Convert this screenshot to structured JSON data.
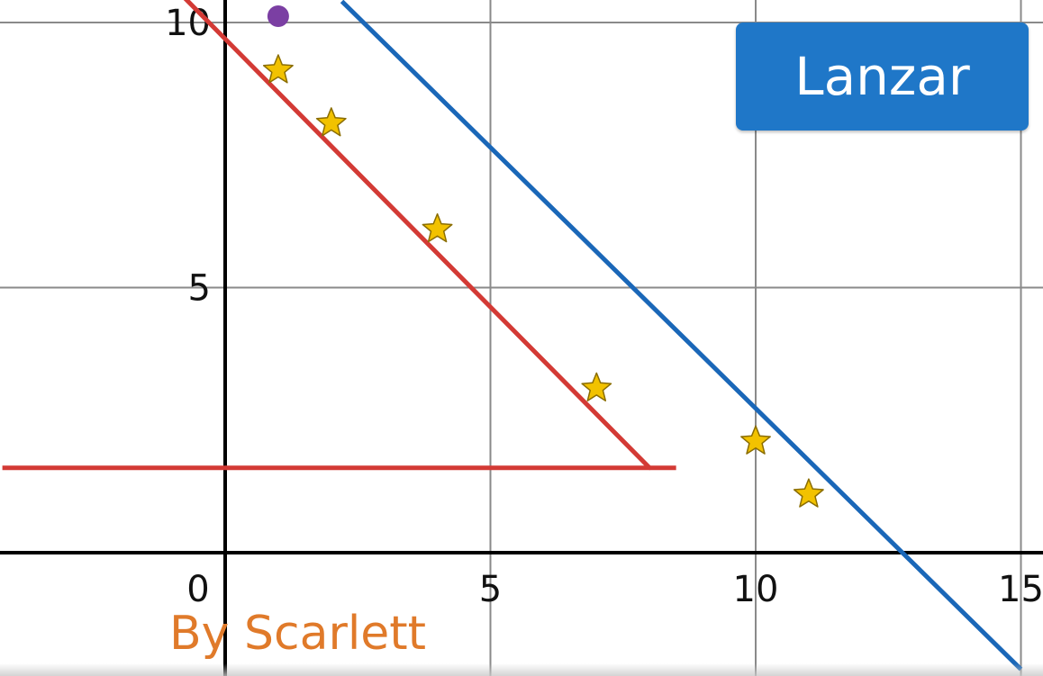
{
  "button": {
    "label": "Lanzar"
  },
  "watermark": {
    "text": "By Scarlett"
  },
  "colors": {
    "grid": "#8a8a8a",
    "axis": "#000000",
    "red_line": "#d33a35",
    "blue_line": "#1a67b8",
    "star_fill": "#f2c200",
    "star_stroke": "#8a6d00",
    "point": "#7b3fa3"
  },
  "chart_data": {
    "type": "scatter",
    "xlim": [
      -4.2,
      15.3
    ],
    "ylim": [
      -2.3,
      10.3
    ],
    "grid": true,
    "x_ticks": [
      "0",
      "5",
      "10",
      "15"
    ],
    "y_ticks": [
      "5",
      "10"
    ],
    "stars": [
      {
        "x": 1,
        "y": 9.1
      },
      {
        "x": 2,
        "y": 8.1
      },
      {
        "x": 4,
        "y": 6.1
      },
      {
        "x": 7,
        "y": 3.1
      },
      {
        "x": 10,
        "y": 2.1
      },
      {
        "x": 11,
        "y": 1.1
      }
    ],
    "point": {
      "x": 1,
      "y": 10
    },
    "red_diagonal": [
      [
        -0.8,
        10.5
      ],
      [
        8,
        1.6
      ]
    ],
    "red_horizontal": [
      [
        -4.2,
        1.6
      ],
      [
        8.5,
        1.6
      ]
    ],
    "blue_line": [
      [
        2.2,
        10.4
      ],
      [
        15,
        -2.2
      ]
    ]
  }
}
